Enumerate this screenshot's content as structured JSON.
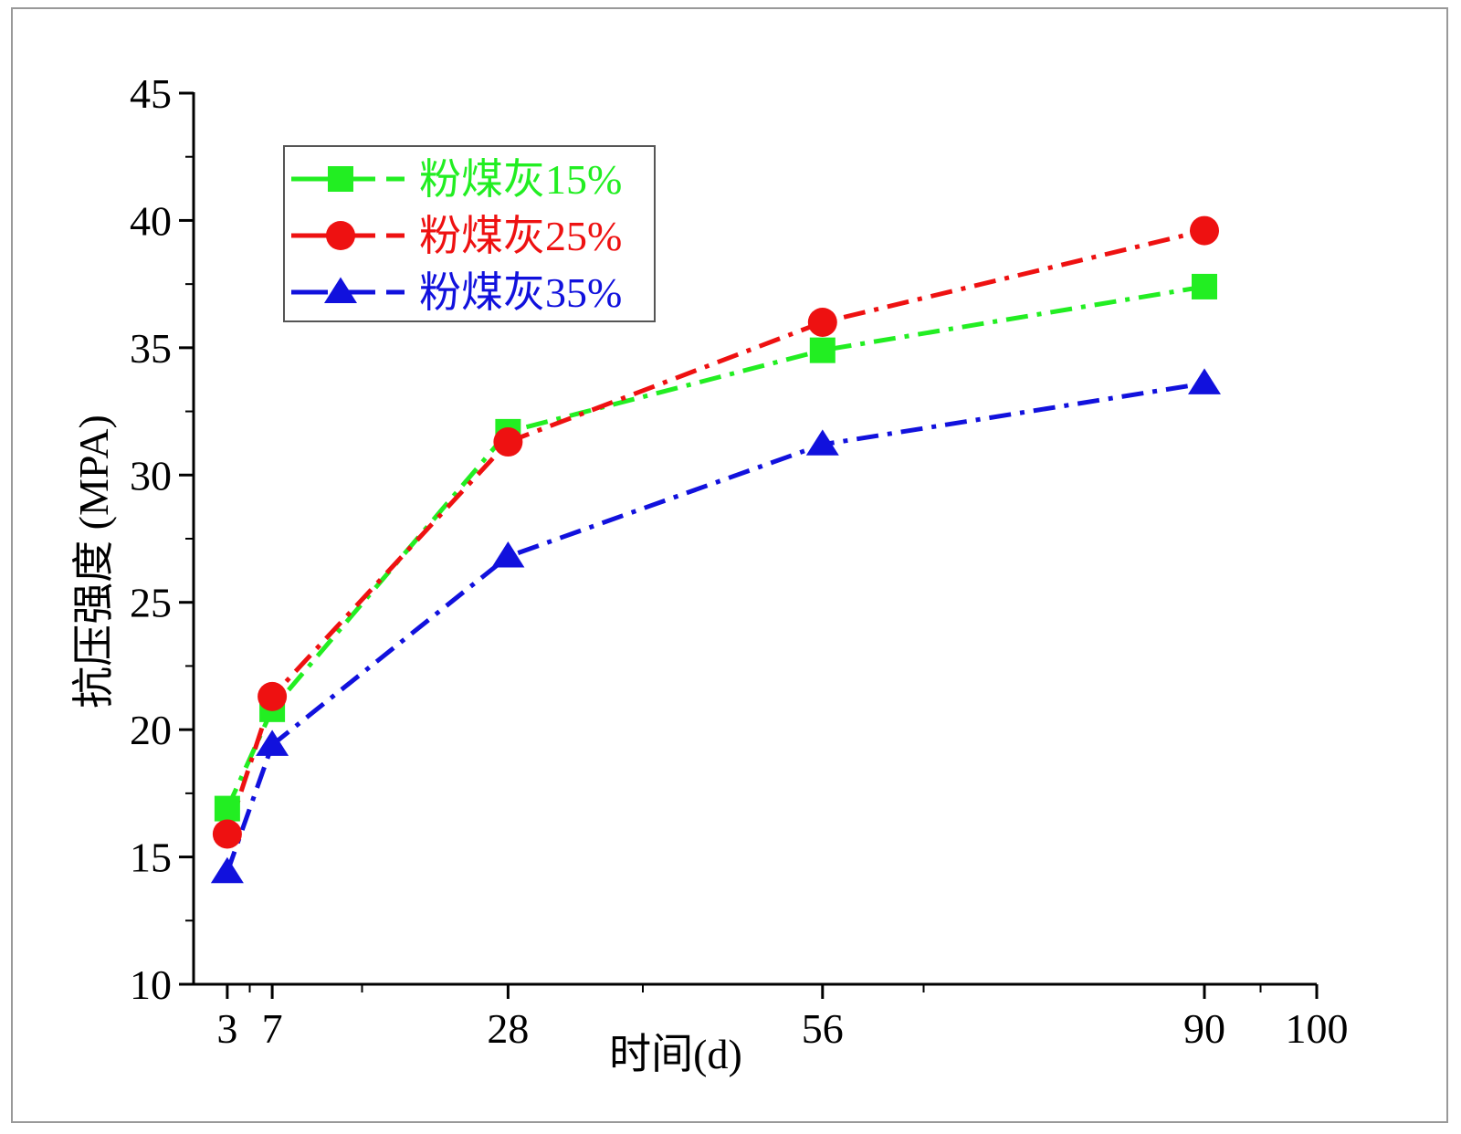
{
  "chart_data": {
    "type": "line",
    "title": "",
    "xlabel": "时间(d)",
    "ylabel": "抗压强度 (MPA)",
    "xlim": [
      0,
      100
    ],
    "ylim": [
      10,
      45
    ],
    "x_ticks": [
      3,
      7,
      28,
      56,
      90,
      100
    ],
    "x_tick_labels": [
      "3",
      "7",
      "28",
      "56",
      "90",
      "100"
    ],
    "y_ticks": [
      10,
      15,
      20,
      25,
      30,
      35,
      40,
      45
    ],
    "y_tick_labels": [
      "10",
      "15",
      "20",
      "25",
      "30",
      "35",
      "40",
      "45"
    ],
    "x": [
      3,
      7,
      28,
      56,
      90
    ],
    "legend_position": "top-left",
    "grid": false,
    "series": [
      {
        "name": "粉煤灰15%",
        "color": "#22ee22",
        "marker": "square",
        "values": [
          16.9,
          20.8,
          31.7,
          34.9,
          37.4
        ]
      },
      {
        "name": "粉煤灰25%",
        "color": "#ee1111",
        "marker": "circle",
        "values": [
          15.9,
          21.3,
          31.3,
          36.0,
          39.6
        ]
      },
      {
        "name": "粉煤灰35%",
        "color": "#1111dd",
        "marker": "triangle",
        "values": [
          14.4,
          19.4,
          26.8,
          31.2,
          33.6
        ]
      }
    ]
  }
}
